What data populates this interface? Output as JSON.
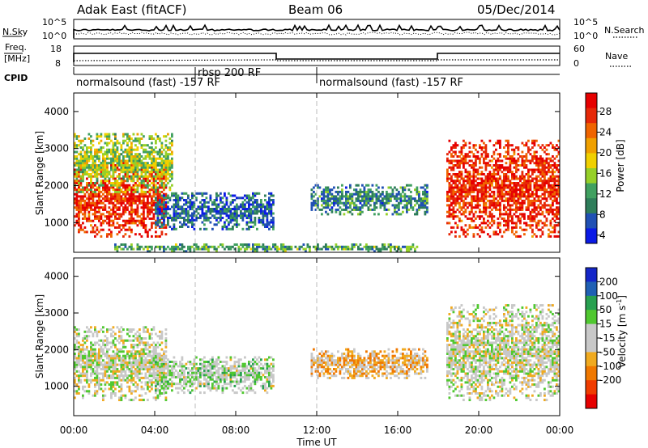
{
  "header": {
    "station": "Adak East (fitACF)",
    "beam": "Beam 06",
    "date": "05/Dec/2014"
  },
  "strips": {
    "nsky_label": "N.Sky",
    "nsky_ticks": [
      "10^5",
      "10^0"
    ],
    "nsearch_label": "N.Search",
    "freq_label": "Freq.",
    "freq_unit": "[MHz]",
    "freq_ticks": [
      "18",
      "8"
    ],
    "nave_label": "Nave",
    "nave_ticks": [
      "60",
      "0"
    ],
    "cpid_label": "CPID",
    "cpid_segments": [
      "normalsound (fast) -157 RF",
      "rbsp 200 RF",
      "normalsound (fast) -157 RF"
    ]
  },
  "x_axis": {
    "label": "Time UT",
    "ticks": [
      "00:00",
      "04:00",
      "08:00",
      "12:00",
      "16:00",
      "20:00",
      "00:00"
    ]
  },
  "colors": {
    "power": [
      "#0a1ae6",
      "#2050b4",
      "#2e7d5a",
      "#40a060",
      "#96d028",
      "#f0d000",
      "#f0a000",
      "#f06400",
      "#e62808",
      "#e60000"
    ],
    "velocity": [
      "#e60000",
      "#f03c00",
      "#f07800",
      "#f0aa20",
      "#c8c8c8",
      "#c8c8c8",
      "#50c830",
      "#28a050",
      "#2060b4",
      "#1426c8"
    ]
  },
  "chart_data": [
    {
      "type": "heatmap",
      "title": "Power",
      "ylabel": "Slant Range [km]",
      "xlabel": "Time UT",
      "x_range_hours": [
        0,
        24
      ],
      "ylim": [
        200,
        4500
      ],
      "yticks": [
        "4000",
        "3000",
        "2000",
        "1000"
      ],
      "colorbar": {
        "label": "Power [dB]",
        "ticks": [
          "28",
          "24",
          "20",
          "16",
          "12",
          "8",
          "4"
        ],
        "range": [
          0,
          30
        ]
      },
      "features": [
        {
          "name": "evening band",
          "t_start": 0.0,
          "t_end": 4.6,
          "range_low_km": 600,
          "range_high_km": 2600,
          "typical_value": 26
        },
        {
          "name": "evening high-range echoes",
          "t_start": 0.0,
          "t_end": 4.8,
          "range_low_km": 1800,
          "range_high_km": 3400,
          "typical_value": 14
        },
        {
          "name": "post-dusk diffuse echoes",
          "t_start": 4.0,
          "t_end": 9.8,
          "range_low_km": 800,
          "range_high_km": 1800,
          "typical_value": 6
        },
        {
          "name": "midday band",
          "t_start": 11.7,
          "t_end": 17.5,
          "range_low_km": 1200,
          "range_high_km": 2000,
          "typical_value": 8
        },
        {
          "name": "morning band",
          "t_start": 18.4,
          "t_end": 24.0,
          "range_low_km": 600,
          "range_high_km": 3200,
          "typical_value": 26
        },
        {
          "name": "near-range ground scatter",
          "t_start": 2.0,
          "t_end": 17.0,
          "range_low_km": 200,
          "range_high_km": 400,
          "typical_value": 10
        }
      ]
    },
    {
      "type": "heatmap",
      "title": "Velocity",
      "ylabel": "Slant Range [km]",
      "xlabel": "Time UT",
      "x_range_hours": [
        0,
        24
      ],
      "ylim": [
        200,
        4500
      ],
      "yticks": [
        "4000",
        "3000",
        "2000",
        "1000"
      ],
      "colorbar": {
        "label": "Velocity [m s^-1]",
        "ticks": [
          "200",
          "100",
          "50",
          "15",
          "-15",
          "-50",
          "-100",
          "-200"
        ],
        "range": [
          -250,
          250
        ]
      },
      "features": [
        {
          "name": "evening band",
          "t_start": 0.0,
          "t_end": 4.6,
          "range_low_km": 600,
          "range_high_km": 2600,
          "typical_value": 0
        },
        {
          "name": "post-dusk echoes",
          "t_start": 4.0,
          "t_end": 9.8,
          "range_low_km": 800,
          "range_high_km": 1800,
          "typical_value": 30
        },
        {
          "name": "midday band",
          "t_start": 11.7,
          "t_end": 17.5,
          "range_low_km": 1200,
          "range_high_km": 2000,
          "typical_value": -60
        },
        {
          "name": "morning band",
          "t_start": 18.4,
          "t_end": 24.0,
          "range_low_km": 600,
          "range_high_km": 3200,
          "typical_value": 0
        }
      ]
    }
  ]
}
